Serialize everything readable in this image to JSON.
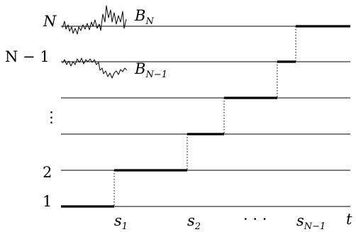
{
  "level_labels": {
    "top": "N",
    "second": "N − 1",
    "dots": "⋮",
    "two": "2",
    "one": "1"
  },
  "process_labels": {
    "b_n": {
      "base": "B",
      "sub": "N"
    },
    "b_n_minus_1": {
      "base": "B",
      "sub": "N−1"
    }
  },
  "time_labels": {
    "s1": {
      "base": "s",
      "sub": "1"
    },
    "s2": {
      "base": "s",
      "sub": "2"
    },
    "ellipsis": "· · ·",
    "s_n_minus_1": {
      "base": "s",
      "sub": "N−1"
    },
    "t": "t"
  }
}
